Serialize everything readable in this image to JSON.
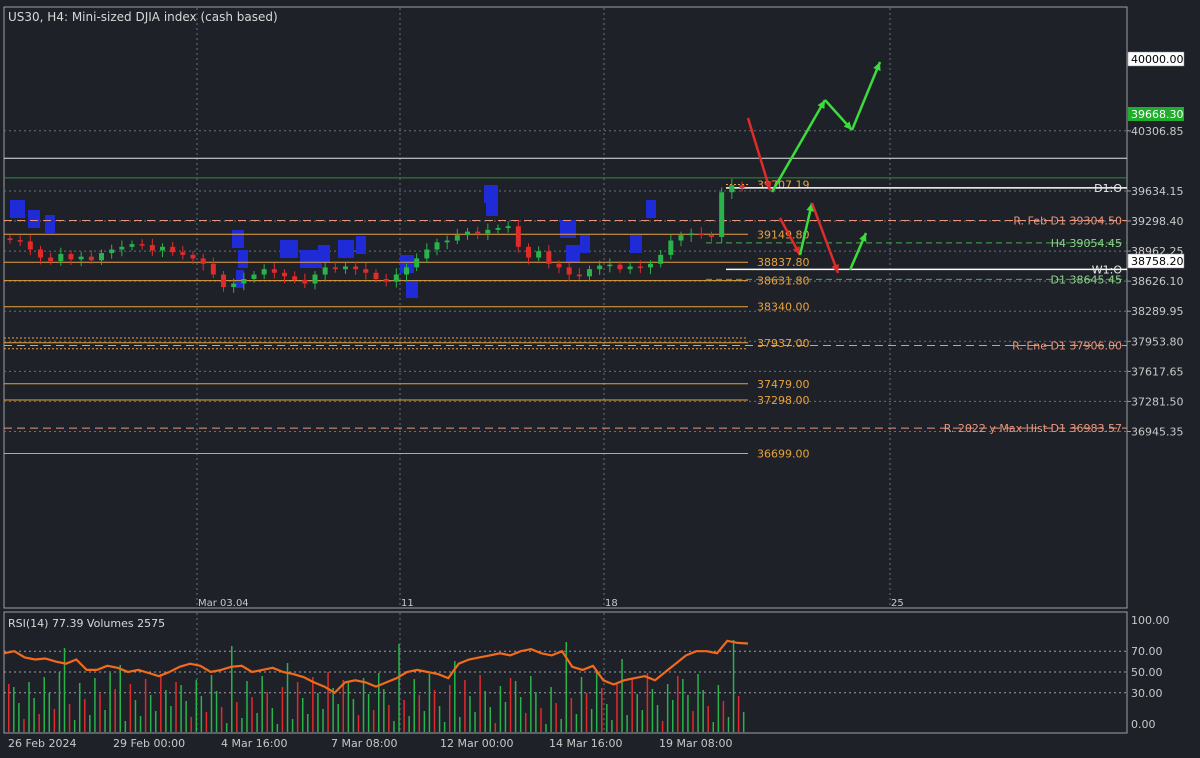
{
  "header": {
    "title": "US30, H4:  Mini-sized DJIA index (cash based)"
  },
  "colors": {
    "background": "#1e2128",
    "grid": "#6b6f77",
    "axis_text": "#c8c8c8",
    "level_orange": "#e8a23c",
    "level_salmon": "#e9977a",
    "level_green": "#44b04a",
    "level_white": "#ffffff",
    "candle_up": "#29b34a",
    "candle_down": "#e02b2b",
    "profile": "#1f2bd6",
    "arrow_green": "#3ddc3d",
    "arrow_red": "#e02b2b",
    "rsi_line": "#f26a1b",
    "price_tag_green": "#1fae2c"
  },
  "chart_data": [
    {
      "type": "candlestick",
      "title": "US30, H4:  Mini-sized DJIA index (cash based)",
      "ylim": [
        36699.0,
        40306.85
      ],
      "y_ticks": [
        "40306.85",
        "39634.15",
        "39298.40",
        "38962.25",
        "38626.10",
        "38289.95",
        "37953.80",
        "37617.65",
        "37281.50",
        "36945.35"
      ],
      "x_ticks_top": [
        "Mar 03.04",
        "11",
        "18",
        "25"
      ],
      "price_tags": {
        "level_40000": "40000.00",
        "current": "39668.30",
        "w1_open": "38758.20"
      },
      "horizontal_levels": [
        {
          "label": "39707.19",
          "value": 39707.19,
          "kind": "short-orange"
        },
        {
          "label": "39149.80",
          "value": 39149.8,
          "kind": "orange"
        },
        {
          "label": "38837.80",
          "value": 38837.8,
          "kind": "orange"
        },
        {
          "label": "38631.80",
          "value": 38631.8,
          "kind": "orange"
        },
        {
          "label": "38340.00",
          "value": 38340.0,
          "kind": "orange"
        },
        {
          "label": "37937.00",
          "value": 37937.0,
          "kind": "orange"
        },
        {
          "label": "37479.00",
          "value": 37479.0,
          "kind": "orange"
        },
        {
          "label": "37298.00",
          "value": 37298.0,
          "kind": "orange"
        },
        {
          "label": "36699.00",
          "value": 36699.0,
          "kind": "orange"
        },
        {
          "label": "R. Feb D1 39304.50",
          "value": 39304.5,
          "kind": "salmon-dashed"
        },
        {
          "label": "R. Ene D1 37906.00",
          "value": 37906.0,
          "kind": "salmon-dashed"
        },
        {
          "label": "R. 2022 y Max Hist D1 36983.57",
          "value": 36983.57,
          "kind": "salmon-dashed"
        },
        {
          "label": "H4 39054.45",
          "value": 39054.45,
          "kind": "green-dashed"
        },
        {
          "label": "D1 38645.45",
          "value": 38645.45,
          "kind": "green-dashed"
        },
        {
          "label": "D1:O",
          "value": 39668.3,
          "kind": "white"
        },
        {
          "label": "W1:O",
          "value": 38758.2,
          "kind": "white"
        }
      ],
      "close_path": [
        39085,
        39070,
        38980,
        38890,
        38850,
        38930,
        38870,
        38900,
        38860,
        38940,
        38980,
        39010,
        39040,
        39030,
        38970,
        39010,
        38950,
        38920,
        38880,
        38820,
        38700,
        38560,
        38600,
        38650,
        38700,
        38760,
        38720,
        38680,
        38640,
        38600,
        38700,
        38780,
        38760,
        38790,
        38760,
        38720,
        38650,
        38620,
        38700,
        38780,
        38880,
        38980,
        39060,
        39080,
        39140,
        39180,
        39160,
        39200,
        39220,
        39240,
        39010,
        38890,
        38960,
        38820,
        38780,
        38700,
        38680,
        38760,
        38800,
        38810,
        38760,
        38790,
        38780,
        38820,
        38920,
        39080,
        39140,
        39160,
        39140,
        39120,
        39620,
        39700,
        39668
      ]
    },
    {
      "type": "line",
      "title": "RSI(14) 77.39 Volumes 2575",
      "ylim": [
        0,
        100
      ],
      "y_ticks": [
        "100.00",
        "70.00",
        "50.00",
        "30.00",
        "0.00"
      ],
      "x_ticks": [
        "26 Feb 2024",
        "29 Feb 00:00",
        "4 Mar 16:00",
        "7 Mar 08:00",
        "12 Mar 00:00",
        "14 Mar 16:00",
        "19 Mar 08:00"
      ],
      "series": [
        {
          "values": [
            68,
            70,
            64,
            62,
            63,
            60,
            58,
            62,
            52,
            52,
            56,
            54,
            50,
            52,
            49,
            46,
            50,
            55,
            58,
            56,
            50,
            52,
            55,
            56,
            50,
            52,
            54,
            50,
            48,
            45,
            40,
            36,
            30,
            40,
            42,
            40,
            36,
            40,
            44,
            50,
            52,
            50,
            48,
            44,
            58,
            62,
            64,
            66,
            68,
            66,
            70,
            72,
            68,
            66,
            70,
            55,
            52,
            56,
            42,
            38,
            42,
            44,
            46,
            42,
            50,
            58,
            66,
            70,
            70,
            68,
            80,
            78,
            77.39
          ]
        }
      ]
    }
  ]
}
